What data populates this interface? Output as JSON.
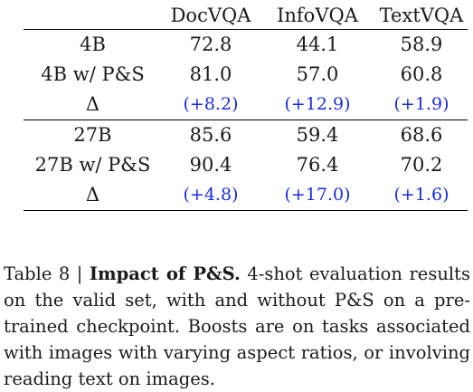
{
  "table": {
    "columns": [
      "",
      "DocVQA",
      "InfoVQA",
      "TextVQA"
    ],
    "groups": [
      {
        "rows": [
          {
            "label": "4B",
            "values": [
              "72.8",
              "44.1",
              "58.9"
            ]
          },
          {
            "label": "4B w/ P&S",
            "values": [
              "81.0",
              "57.0",
              "60.8"
            ]
          },
          {
            "label": "Δ",
            "values": [
              "(+8.2)",
              "(+12.9)",
              "(+1.9)"
            ],
            "is_delta": true
          }
        ]
      },
      {
        "rows": [
          {
            "label": "27B",
            "values": [
              "85.6",
              "59.4",
              "68.6"
            ]
          },
          {
            "label": "27B w/ P&S",
            "values": [
              "90.4",
              "76.4",
              "70.2"
            ]
          },
          {
            "label": "Δ",
            "values": [
              "(+4.8)",
              "(+17.0)",
              "(+1.6)"
            ],
            "is_delta": true
          }
        ]
      }
    ],
    "delta_color": "#1a2cd6"
  },
  "caption": {
    "prefix": "Table 8 | ",
    "title": "Impact of P&S.",
    "body": " 4-shot evaluation results on the valid set, with and without P&S on a pre-trained checkpoint. Boosts are on tasks associated with images with varying aspect ratios, or involving reading text on images."
  }
}
